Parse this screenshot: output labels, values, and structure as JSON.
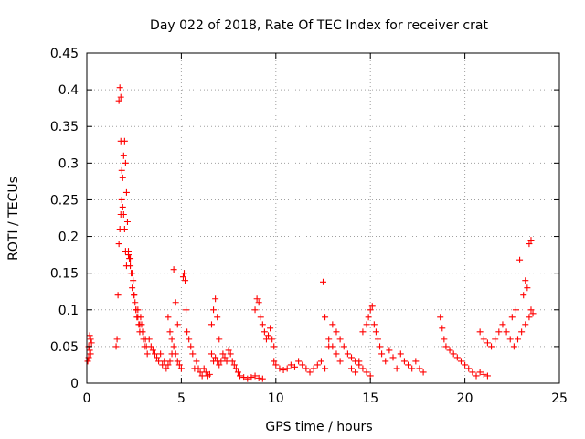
{
  "chart_data": {
    "type": "scatter",
    "title": "Day 022 of 2018, Rate Of TEC Index for receiver crat",
    "xlabel": "GPS time / hours",
    "ylabel": "ROTI / TECUs",
    "xlim": [
      0,
      25
    ],
    "ylim": [
      0,
      0.45
    ],
    "x_ticks": [
      0,
      5,
      10,
      15,
      20,
      25
    ],
    "x_tick_labels": [
      "0",
      "5",
      "10",
      "15",
      "20",
      "25"
    ],
    "y_ticks": [
      0,
      0.05,
      0.1,
      0.15,
      0.2,
      0.25,
      0.3,
      0.35,
      0.4,
      0.45
    ],
    "y_tick_labels": [
      "0",
      "0.05",
      "0.1",
      "0.15",
      "0.2",
      "0.25",
      "0.3",
      "0.35",
      "0.4",
      "0.45"
    ],
    "grid": true,
    "marker": "+",
    "series": [
      {
        "name": "ROTI",
        "color": "#ff0000",
        "x": [
          0.05,
          0.1,
          0.15,
          0.2,
          0.25,
          0.1,
          0.15,
          0.2,
          1.55,
          1.6,
          1.65,
          1.7,
          1.75,
          1.8,
          1.85,
          1.9,
          1.95,
          2.0,
          2.05,
          2.1,
          2.15,
          2.2,
          2.25,
          2.3,
          2.35,
          2.4,
          2.45,
          2.5,
          2.55,
          2.6,
          2.65,
          2.7,
          2.75,
          2.8,
          2.85,
          2.9,
          2.95,
          3.0,
          3.05,
          3.1,
          3.15,
          3.2,
          1.7,
          1.75,
          1.8,
          1.8,
          1.85,
          1.9,
          1.95,
          2.0,
          2.05,
          2.1,
          2.2,
          2.3,
          2.4,
          2.5,
          2.6,
          2.7,
          2.8,
          3.3,
          3.4,
          3.5,
          3.6,
          3.7,
          3.8,
          3.9,
          4.0,
          4.1,
          4.2,
          4.3,
          4.4,
          4.5,
          4.6,
          4.7,
          4.8,
          4.9,
          5.0,
          4.3,
          4.4,
          4.5,
          4.6,
          4.7,
          4.8,
          5.1,
          5.15,
          5.2,
          5.25,
          5.3,
          5.4,
          5.5,
          5.6,
          5.7,
          5.8,
          5.9,
          6.0,
          6.1,
          6.2,
          6.3,
          6.4,
          6.5,
          6.6,
          6.7,
          6.8,
          6.9,
          7.0,
          6.6,
          6.7,
          6.8,
          6.9,
          7.0,
          7.1,
          7.2,
          7.3,
          7.4,
          7.5,
          7.6,
          7.7,
          7.8,
          7.9,
          8.0,
          8.1,
          8.3,
          8.5,
          8.7,
          8.9,
          9.1,
          9.3,
          8.9,
          9.0,
          9.1,
          9.2,
          9.3,
          9.4,
          9.5,
          9.6,
          9.7,
          9.8,
          9.9,
          9.9,
          10.0,
          10.2,
          10.4,
          10.6,
          10.8,
          11.0,
          11.2,
          11.4,
          11.6,
          11.8,
          12.0,
          12.2,
          12.4,
          12.5,
          12.6,
          12.8,
          13.0,
          13.2,
          13.4,
          13.6,
          13.8,
          14.0,
          14.2,
          14.4,
          14.6,
          14.8,
          15.0,
          12.6,
          12.8,
          13.0,
          13.2,
          13.4,
          14.0,
          14.2,
          14.4,
          14.6,
          14.8,
          14.9,
          15.0,
          15.1,
          15.2,
          15.3,
          15.4,
          15.5,
          15.6,
          15.8,
          16.0,
          16.2,
          16.4,
          16.6,
          16.8,
          17.0,
          17.2,
          17.4,
          17.6,
          17.8,
          18.7,
          18.8,
          18.9,
          19.0,
          19.2,
          19.4,
          19.6,
          19.8,
          20.0,
          20.2,
          20.4,
          20.6,
          20.8,
          21.0,
          21.2,
          20.8,
          21.0,
          21.2,
          21.4,
          21.6,
          21.8,
          22.0,
          22.2,
          22.4,
          22.6,
          22.8,
          23.0,
          23.2,
          23.4,
          23.5,
          23.6,
          22.5,
          22.7,
          22.9,
          23.1,
          23.2,
          23.3,
          23.4,
          23.5
        ],
        "y": [
          0.03,
          0.05,
          0.065,
          0.04,
          0.055,
          0.035,
          0.045,
          0.06,
          0.05,
          0.06,
          0.12,
          0.19,
          0.21,
          0.23,
          0.25,
          0.28,
          0.31,
          0.33,
          0.3,
          0.26,
          0.22,
          0.18,
          0.17,
          0.16,
          0.15,
          0.13,
          0.14,
          0.12,
          0.11,
          0.1,
          0.09,
          0.1,
          0.08,
          0.07,
          0.09,
          0.08,
          0.07,
          0.06,
          0.05,
          0.06,
          0.05,
          0.04,
          0.385,
          0.403,
          0.39,
          0.33,
          0.29,
          0.24,
          0.23,
          0.21,
          0.18,
          0.16,
          0.175,
          0.17,
          0.15,
          0.12,
          0.1,
          0.09,
          0.08,
          0.06,
          0.05,
          0.045,
          0.04,
          0.035,
          0.03,
          0.04,
          0.025,
          0.03,
          0.02,
          0.025,
          0.03,
          0.04,
          0.05,
          0.04,
          0.03,
          0.025,
          0.02,
          0.09,
          0.07,
          0.06,
          0.155,
          0.11,
          0.08,
          0.145,
          0.15,
          0.14,
          0.1,
          0.07,
          0.06,
          0.05,
          0.04,
          0.02,
          0.03,
          0.02,
          0.015,
          0.01,
          0.02,
          0.015,
          0.01,
          0.012,
          0.08,
          0.1,
          0.115,
          0.09,
          0.06,
          0.04,
          0.03,
          0.035,
          0.03,
          0.025,
          0.03,
          0.04,
          0.035,
          0.03,
          0.045,
          0.04,
          0.03,
          0.025,
          0.02,
          0.015,
          0.01,
          0.008,
          0.006,
          0.008,
          0.01,
          0.007,
          0.006,
          0.1,
          0.115,
          0.11,
          0.09,
          0.08,
          0.07,
          0.06,
          0.065,
          0.075,
          0.06,
          0.05,
          0.03,
          0.025,
          0.02,
          0.018,
          0.02,
          0.025,
          0.022,
          0.03,
          0.025,
          0.02,
          0.015,
          0.02,
          0.025,
          0.03,
          0.138,
          0.02,
          0.05,
          0.08,
          0.07,
          0.06,
          0.05,
          0.04,
          0.035,
          0.03,
          0.025,
          0.02,
          0.015,
          0.01,
          0.09,
          0.06,
          0.05,
          0.04,
          0.03,
          0.02,
          0.015,
          0.03,
          0.07,
          0.08,
          0.09,
          0.1,
          0.105,
          0.08,
          0.07,
          0.06,
          0.05,
          0.04,
          0.03,
          0.045,
          0.035,
          0.02,
          0.04,
          0.03,
          0.025,
          0.02,
          0.03,
          0.02,
          0.015,
          0.09,
          0.075,
          0.06,
          0.05,
          0.045,
          0.04,
          0.035,
          0.03,
          0.025,
          0.02,
          0.015,
          0.01,
          0.015,
          0.012,
          0.01,
          0.07,
          0.06,
          0.055,
          0.05,
          0.06,
          0.07,
          0.08,
          0.07,
          0.06,
          0.05,
          0.06,
          0.07,
          0.08,
          0.09,
          0.1,
          0.095,
          0.09,
          0.1,
          0.168,
          0.12,
          0.14,
          0.13,
          0.19,
          0.195
        ]
      }
    ]
  }
}
